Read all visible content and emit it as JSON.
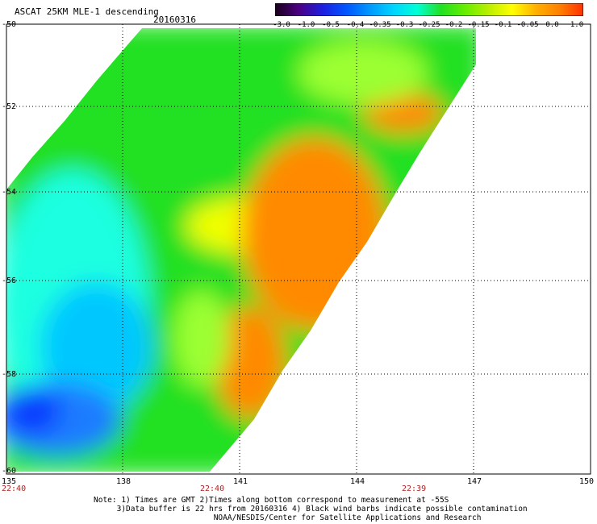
{
  "header": {
    "title": "ASCAT 25KM MLE-1 descending",
    "date": "20160316"
  },
  "colorbar": {
    "labels": [
      "-3.0",
      "-1.0",
      "-0.5",
      "-0.4",
      "-0.35",
      "-0.3",
      "-0.25",
      "-0.2",
      "-0.15",
      "-0.1",
      "-0.05",
      "0.0",
      "1.0"
    ],
    "colors": [
      "#1a001a",
      "#4b0082",
      "#1e1ee0",
      "#0055ff",
      "#0099ff",
      "#00d5ff",
      "#00ffd5",
      "#22e022",
      "#66ee00",
      "#bbee00",
      "#ffff00",
      "#ffb000",
      "#ff8000",
      "#ff3000"
    ]
  },
  "map": {
    "lon_labels": [
      "135",
      "138",
      "141",
      "144",
      "147",
      "150"
    ],
    "lat_labels": [
      "-50",
      "-52",
      "-54",
      "-56",
      "-58",
      "-60"
    ],
    "time_labels": [
      "22:40",
      "22:40",
      "22:39"
    ],
    "colors": {
      "deep_blue": "#0a3cff",
      "blue": "#1e7bff",
      "cyan_blue": "#00c8ff",
      "cyan": "#1fffe0",
      "green": "#22e022",
      "light_green": "#9bff32",
      "yellow": "#f0ff00",
      "orange": "#ff8a00"
    }
  },
  "notes": {
    "line1": "Note: 1) Times are GMT 2)Times along bottom correspond to measurement at -55S",
    "line2": "     3)Data buffer is 22 hrs from 20160316 4) Black wind barbs indicate possible contamination",
    "line3": "                          NOAA/NESDIS/Center for Satellite Applications and Research"
  }
}
